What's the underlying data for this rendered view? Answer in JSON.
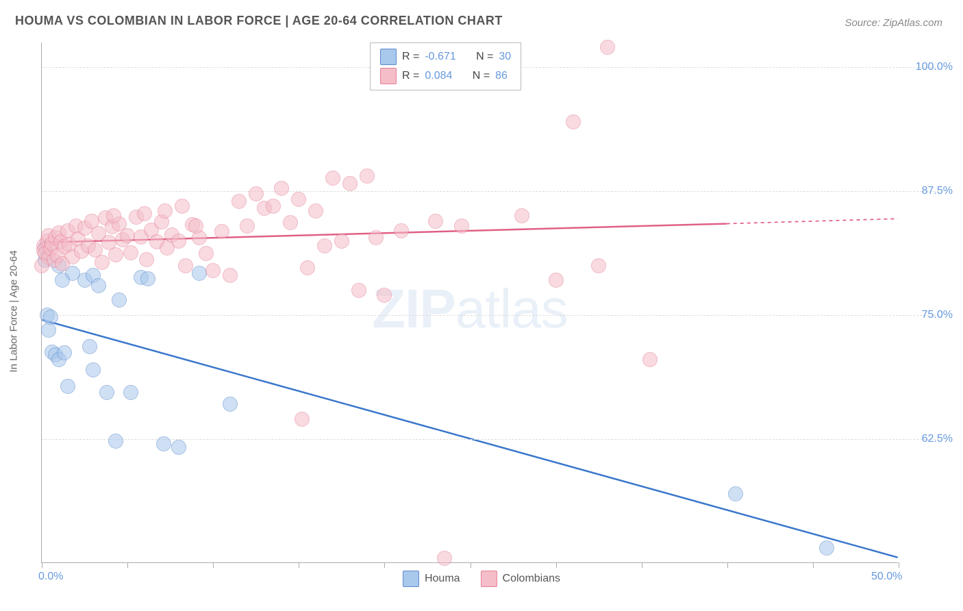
{
  "title": "HOUMA VS COLOMBIAN IN LABOR FORCE | AGE 20-64 CORRELATION CHART",
  "source": "Source: ZipAtlas.com",
  "ylabel": "In Labor Force | Age 20-64",
  "watermark_bold": "ZIP",
  "watermark_rest": "atlas",
  "chart": {
    "type": "scatter",
    "background_color": "#ffffff",
    "grid_color": "#dddddd",
    "axis_color": "#aaaaaa",
    "xlim": [
      0,
      50
    ],
    "ylim": [
      50,
      102.5
    ],
    "xticks": [
      0,
      5,
      10,
      15,
      20,
      25,
      30,
      35,
      40,
      45,
      50
    ],
    "x_axis_labels": [
      {
        "value": 0,
        "label": "0.0%"
      },
      {
        "value": 50,
        "label": "50.0%"
      }
    ],
    "yticks": [
      62.5,
      75.0,
      87.5,
      100.0
    ],
    "ytick_labels": [
      "62.5%",
      "75.0%",
      "87.5%",
      "100.0%"
    ],
    "y_label_color": "#6699dd",
    "label_fontsize": 16,
    "title_fontsize": 18,
    "ylabel_fontsize": 15
  },
  "series": [
    {
      "name": "Houma",
      "fill_color": "#a8c8ec",
      "stroke_color": "#5b8acb",
      "fill_opacity": 0.55,
      "marker_radius": 10,
      "R": "-0.671",
      "N": "30",
      "trend": {
        "x1": 0,
        "y1": 74.5,
        "x2": 50,
        "y2": 50.5,
        "color": "#3a77cc",
        "width": 2.5
      },
      "points": [
        [
          0.2,
          81.8
        ],
        [
          0.2,
          80.5
        ],
        [
          0.3,
          75.0
        ],
        [
          0.4,
          73.5
        ],
        [
          0.5,
          74.8
        ],
        [
          0.6,
          71.3
        ],
        [
          0.8,
          71.0
        ],
        [
          1.0,
          80.0
        ],
        [
          1.0,
          70.5
        ],
        [
          1.3,
          71.2
        ],
        [
          1.5,
          67.8
        ],
        [
          1.8,
          79.2
        ],
        [
          2.5,
          78.5
        ],
        [
          2.8,
          71.8
        ],
        [
          3.0,
          79.0
        ],
        [
          3.0,
          69.5
        ],
        [
          3.3,
          78.0
        ],
        [
          3.8,
          67.2
        ],
        [
          4.3,
          62.3
        ],
        [
          4.5,
          76.5
        ],
        [
          5.2,
          67.2
        ],
        [
          5.8,
          78.8
        ],
        [
          6.2,
          78.7
        ],
        [
          7.1,
          62.0
        ],
        [
          8.0,
          61.7
        ],
        [
          9.2,
          79.2
        ],
        [
          11.0,
          66.0
        ],
        [
          40.5,
          57.0
        ],
        [
          45.8,
          51.5
        ],
        [
          1.2,
          78.5
        ]
      ]
    },
    {
      "name": "Colombians",
      "fill_color": "#f4bdc8",
      "stroke_color": "#e58197",
      "fill_opacity": 0.55,
      "marker_radius": 10,
      "R": "0.084",
      "N": "86",
      "trend": {
        "x1": 0,
        "y1": 82.3,
        "x2": 40,
        "y2": 84.2,
        "color": "#e06085",
        "width": 2.5,
        "extend_x2": 50,
        "extend_y2": 84.7,
        "dash": "5,5"
      },
      "points": [
        [
          0.1,
          82.0
        ],
        [
          0.1,
          81.5
        ],
        [
          0.2,
          81.2
        ],
        [
          0.3,
          82.5
        ],
        [
          0.4,
          80.8
        ],
        [
          0.4,
          83.0
        ],
        [
          0.5,
          81.7
        ],
        [
          0.6,
          82.2
        ],
        [
          0.7,
          80.5
        ],
        [
          0.8,
          82.8
        ],
        [
          0.9,
          81.0
        ],
        [
          1.0,
          83.3
        ],
        [
          1.1,
          82.4
        ],
        [
          1.2,
          80.2
        ],
        [
          1.3,
          81.9
        ],
        [
          1.5,
          83.5
        ],
        [
          1.6,
          82.1
        ],
        [
          1.8,
          80.9
        ],
        [
          2.0,
          84.0
        ],
        [
          2.1,
          82.7
        ],
        [
          2.3,
          81.4
        ],
        [
          2.5,
          83.8
        ],
        [
          2.7,
          82.0
        ],
        [
          2.9,
          84.5
        ],
        [
          3.1,
          81.6
        ],
        [
          3.3,
          83.2
        ],
        [
          3.5,
          80.3
        ],
        [
          3.7,
          84.8
        ],
        [
          3.9,
          82.3
        ],
        [
          4.1,
          83.9
        ],
        [
          4.3,
          81.1
        ],
        [
          4.5,
          84.2
        ],
        [
          4.7,
          82.6
        ],
        [
          5.0,
          83.0
        ],
        [
          5.2,
          81.3
        ],
        [
          5.5,
          84.9
        ],
        [
          5.8,
          82.9
        ],
        [
          6.1,
          80.6
        ],
        [
          6.4,
          83.6
        ],
        [
          6.7,
          82.4
        ],
        [
          7.0,
          84.4
        ],
        [
          7.3,
          81.8
        ],
        [
          7.6,
          83.1
        ],
        [
          8.0,
          82.5
        ],
        [
          8.4,
          80.0
        ],
        [
          8.8,
          84.1
        ],
        [
          9.2,
          82.8
        ],
        [
          9.6,
          81.2
        ],
        [
          10.0,
          79.5
        ],
        [
          10.5,
          83.4
        ],
        [
          11.0,
          79.0
        ],
        [
          11.5,
          86.5
        ],
        [
          12.0,
          84.0
        ],
        [
          12.5,
          87.2
        ],
        [
          13.0,
          85.8
        ],
        [
          13.5,
          86.0
        ],
        [
          14.0,
          87.8
        ],
        [
          14.5,
          84.3
        ],
        [
          15.0,
          86.7
        ],
        [
          15.5,
          79.8
        ],
        [
          16.0,
          85.5
        ],
        [
          16.5,
          82.0
        ],
        [
          17.0,
          88.8
        ],
        [
          17.5,
          82.5
        ],
        [
          18.0,
          88.3
        ],
        [
          18.5,
          77.5
        ],
        [
          19.0,
          89.0
        ],
        [
          19.5,
          82.8
        ],
        [
          20.0,
          77.0
        ],
        [
          21.0,
          83.5
        ],
        [
          23.0,
          84.5
        ],
        [
          24.5,
          84.0
        ],
        [
          28.0,
          85.0
        ],
        [
          30.0,
          78.5
        ],
        [
          31.0,
          94.5
        ],
        [
          32.5,
          80.0
        ],
        [
          33.0,
          102.0
        ],
        [
          35.5,
          70.5
        ],
        [
          15.2,
          64.5
        ],
        [
          4.2,
          85.0
        ],
        [
          6.0,
          85.2
        ],
        [
          7.2,
          85.5
        ],
        [
          8.2,
          86.0
        ],
        [
          9.0,
          84.0
        ],
        [
          0.0,
          80.0
        ],
        [
          23.5,
          50.5
        ]
      ]
    }
  ],
  "stats_legend": {
    "R_label": "R = ",
    "N_label": "N = "
  },
  "bottom_legend": [
    {
      "label": "Houma",
      "fill": "#a8c8ec",
      "stroke": "#5b8acb"
    },
    {
      "label": "Colombians",
      "fill": "#f4bdc8",
      "stroke": "#e58197"
    }
  ]
}
